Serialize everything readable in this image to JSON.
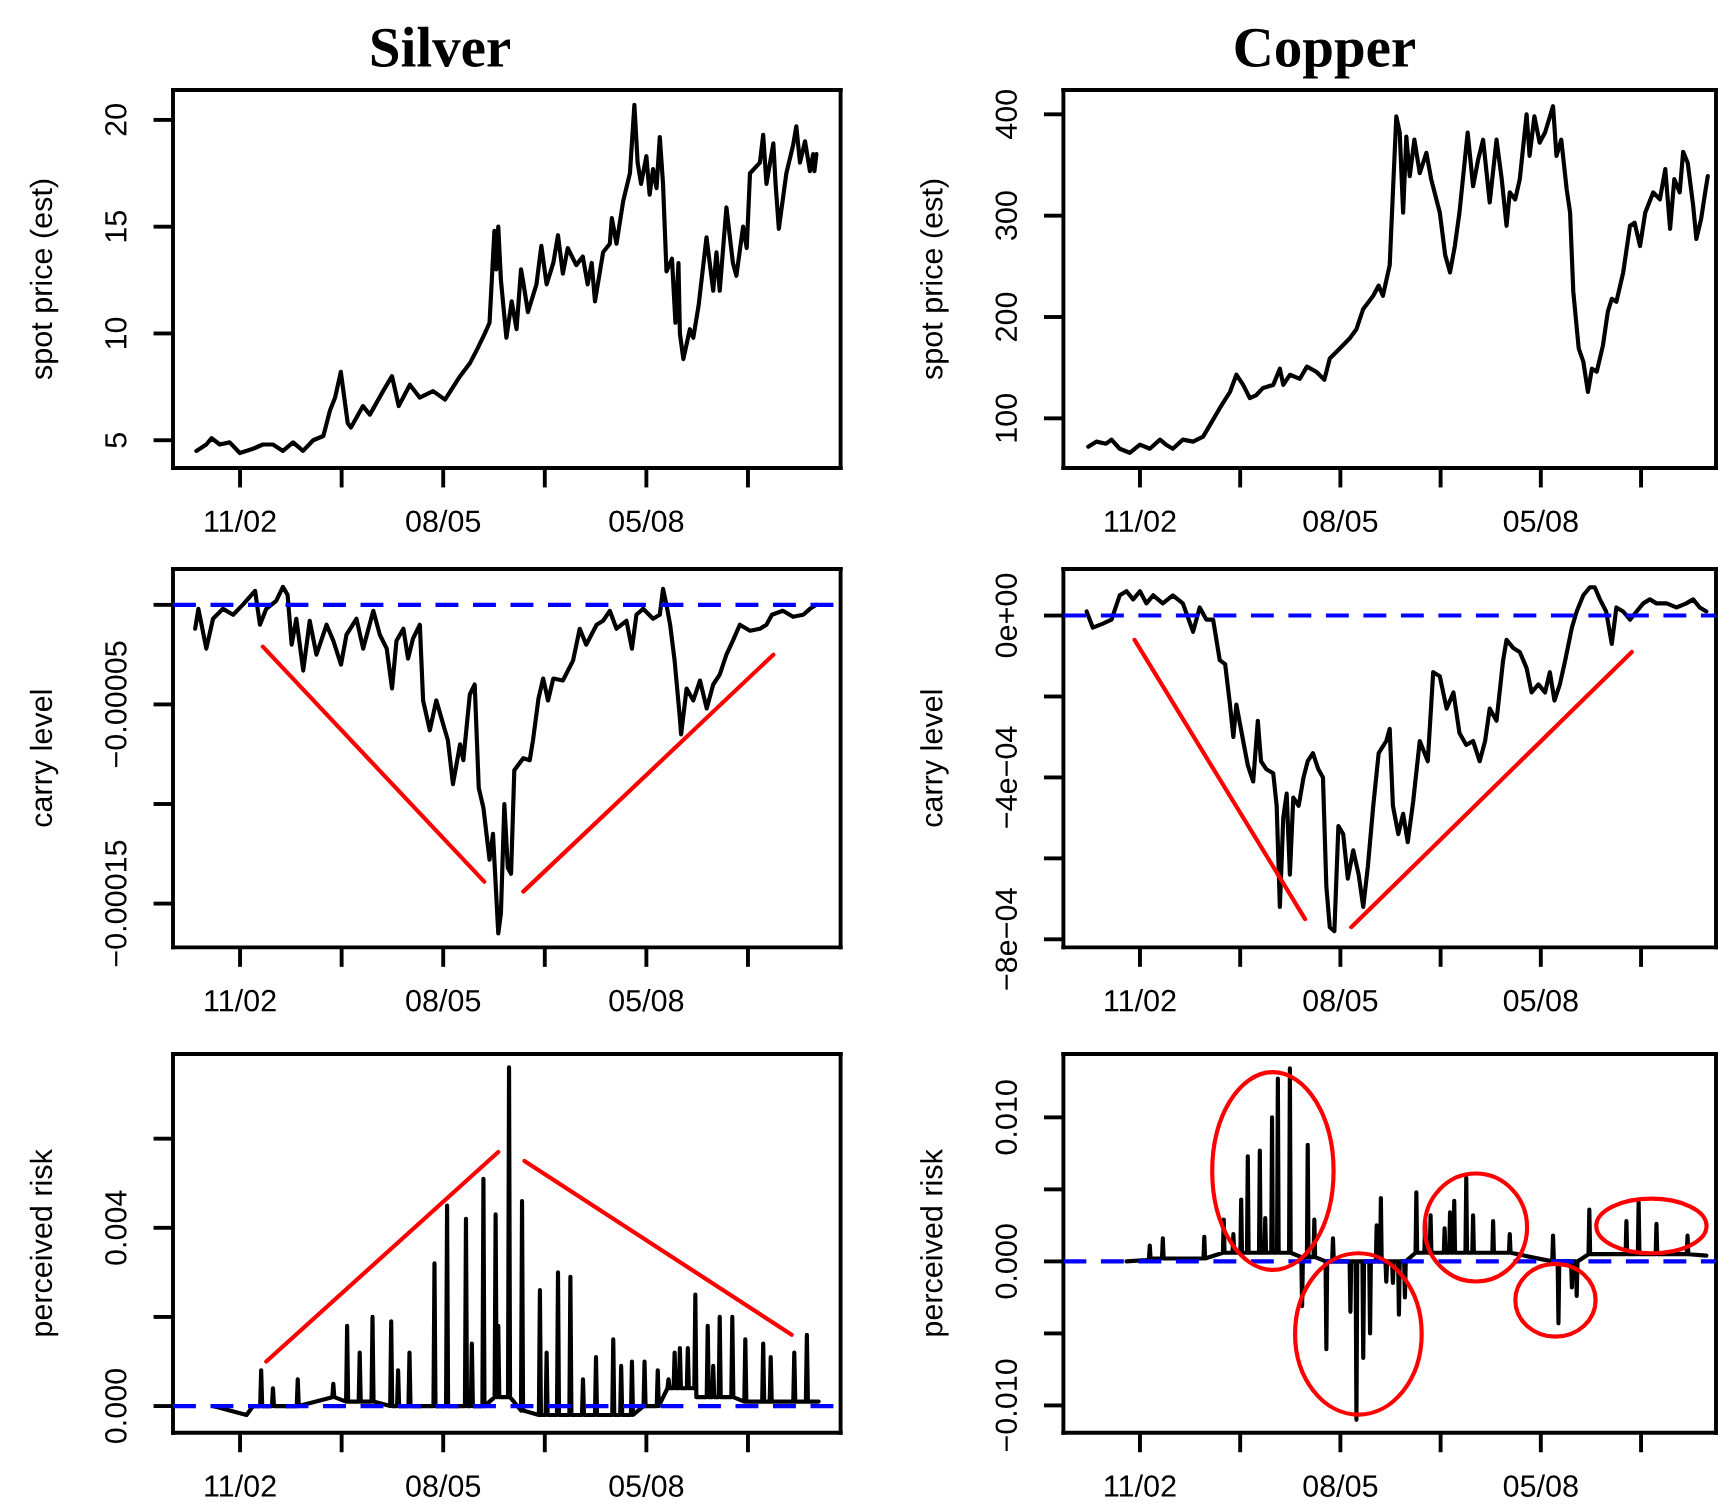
{
  "chart_data": [
    {
      "type": "line",
      "title": "Silver",
      "ylabel": "spot price (est)",
      "xlim": [
        "2001-12-20",
        "2010-12-19"
      ],
      "xticks": [
        {
          "value": "2002-11-15",
          "label": "11/02"
        },
        {
          "value": "2004-03-29",
          "label": null
        },
        {
          "value": "2005-08-11",
          "label": "08/05"
        },
        {
          "value": "2006-12-24",
          "label": null
        },
        {
          "value": "2008-05-07",
          "label": "05/08"
        },
        {
          "value": "2009-09-19",
          "label": null
        }
      ],
      "ylim": [
        3.7,
        21.4
      ],
      "yticks": [
        5,
        10,
        15,
        20
      ],
      "series": [
        {
          "color": "#000000",
          "x": [
            "2002-04-14",
            "2002-06-02",
            "2002-06-28",
            "2002-08-07",
            "2002-09-25",
            "2002-11-14",
            "2003-01-18",
            "2003-03-07",
            "2003-04-26",
            "2003-06-14",
            "2003-08-03",
            "2003-09-21",
            "2003-11-10",
            "2003-12-30",
            "2004-02-01",
            "2004-02-26",
            "2004-03-25",
            "2004-04-28",
            "2004-05-14",
            "2004-07-12",
            "2004-08-15",
            "2004-10-19",
            "2004-12-02",
            "2005-01-04",
            "2005-02-28",
            "2005-04-17",
            "2005-06-22",
            "2005-08-20",
            "2005-11-02",
            "2005-12-20",
            "2006-01-22",
            "2006-03-04",
            "2006-03-27",
            "2006-04-20",
            "2006-04-29",
            "2006-05-09",
            "2006-05-22",
            "2006-06-18",
            "2006-07-14",
            "2006-08-07",
            "2006-08-29",
            "2006-09-09",
            "2006-10-02",
            "2006-11-13",
            "2006-12-07",
            "2007-01-02",
            "2007-02-04",
            "2007-02-27",
            "2007-03-23",
            "2007-04-16",
            "2007-05-28",
            "2007-06-29",
            "2007-07-23",
            "2007-08-12",
            "2007-08-28",
            "2007-10-07",
            "2007-11-09",
            "2007-11-19",
            "2007-12-12",
            "2008-01-14",
            "2008-02-16",
            "2008-03-09",
            "2008-03-25",
            "2008-04-11",
            "2008-05-07",
            "2008-05-23",
            "2008-06-09",
            "2008-06-26",
            "2008-07-12",
            "2008-07-28",
            "2008-08-14",
            "2008-09-10",
            "2008-09-27",
            "2008-10-12",
            "2008-10-19",
            "2008-11-05",
            "2008-12-07",
            "2008-12-24",
            "2009-01-19",
            "2009-02-27",
            "2009-04-01",
            "2009-04-17",
            "2009-05-03",
            "2009-06-05",
            "2009-07-07",
            "2009-07-24",
            "2009-08-26",
            "2009-09-13",
            "2009-09-29",
            "2009-11-17",
            "2009-12-03",
            "2009-12-19",
            "2010-01-22",
            "2010-02-02",
            "2010-02-18",
            "2010-03-27",
            "2010-04-29",
            "2010-05-15",
            "2010-06-02",
            "2010-06-27",
            "2010-07-21",
            "2010-08-06",
            "2010-08-12",
            "2010-08-22"
          ],
          "values": [
            4.5,
            4.8,
            5.1,
            4.8,
            4.9,
            4.4,
            4.6,
            4.8,
            4.8,
            4.5,
            4.9,
            4.5,
            5.0,
            5.2,
            6.4,
            7.0,
            8.2,
            5.8,
            5.6,
            6.6,
            6.2,
            7.3,
            8.0,
            6.6,
            7.6,
            7.0,
            7.3,
            6.9,
            8.0,
            8.6,
            9.2,
            10.0,
            10.5,
            14.8,
            13.0,
            15.0,
            12.5,
            9.8,
            11.5,
            10.2,
            13.0,
            12.4,
            11.0,
            12.3,
            14.1,
            12.3,
            13.3,
            14.6,
            12.8,
            14.0,
            13.2,
            13.6,
            12.3,
            13.3,
            11.5,
            13.8,
            14.2,
            15.4,
            14.2,
            16.2,
            17.5,
            20.7,
            18.0,
            17.0,
            18.3,
            16.5,
            17.7,
            16.8,
            19.2,
            17.0,
            12.9,
            13.5,
            10.5,
            13.3,
            10.0,
            8.8,
            10.2,
            9.8,
            11.3,
            14.5,
            12.0,
            13.8,
            12.0,
            15.9,
            13.3,
            12.7,
            15.0,
            14.0,
            17.5,
            18.0,
            19.3,
            17.0,
            18.9,
            17.0,
            14.9,
            17.5,
            18.8,
            19.7,
            18.0,
            19.0,
            17.6,
            18.4,
            17.6,
            18.4
          ]
        }
      ]
    },
    {
      "type": "line",
      "title": "Copper",
      "ylabel": "spot price (est)",
      "xlim": [
        "2001-10-29",
        "2010-09-28"
      ],
      "xticks": [
        {
          "value": "2002-11-15",
          "label": "11/02"
        },
        {
          "value": "2004-03-29",
          "label": null
        },
        {
          "value": "2005-08-11",
          "label": "08/05"
        },
        {
          "value": "2006-12-24",
          "label": null
        },
        {
          "value": "2008-05-07",
          "label": "05/08"
        },
        {
          "value": "2009-09-19",
          "label": null
        }
      ],
      "ylim": [
        51,
        424
      ],
      "yticks": [
        100,
        200,
        300,
        400
      ],
      "series": [
        {
          "color": "#000000",
          "x": [
            "2002-03-02",
            "2002-04-11",
            "2002-05-30",
            "2002-06-26",
            "2002-08-06",
            "2002-09-25",
            "2002-11-15",
            "2003-01-03",
            "2003-02-23",
            "2003-03-25",
            "2003-04-28",
            "2003-06-17",
            "2003-08-07",
            "2003-09-26",
            "2003-10-29",
            "2003-12-18",
            "2004-02-07",
            "2004-03-10",
            "2004-04-13",
            "2004-05-16",
            "2004-06-18",
            "2004-07-21",
            "2004-09-10",
            "2004-10-13",
            "2004-10-30",
            "2004-12-02",
            "2005-01-21",
            "2005-02-25",
            "2005-04-13",
            "2005-05-23",
            "2005-06-19",
            "2005-08-08",
            "2005-09-27",
            "2005-10-30",
            "2005-12-03",
            "2006-01-22",
            "2006-02-18",
            "2006-03-11",
            "2006-04-14",
            "2006-04-30",
            "2006-05-17",
            "2006-06-03",
            "2006-06-20",
            "2006-07-06",
            "2006-07-23",
            "2006-08-15",
            "2006-09-11",
            "2006-10-14",
            "2006-11-07",
            "2006-12-20",
            "2007-01-16",
            "2007-02-09",
            "2007-03-05",
            "2007-03-28",
            "2007-05-08",
            "2007-06-04",
            "2007-06-30",
            "2007-07-24",
            "2007-08-26",
            "2007-09-29",
            "2007-10-25",
            "2007-11-18",
            "2007-12-04",
            "2007-12-31",
            "2008-01-23",
            "2008-02-26",
            "2008-03-12",
            "2008-04-05",
            "2008-05-01",
            "2008-05-28",
            "2008-07-07",
            "2008-07-24",
            "2008-08-17",
            "2008-09-13",
            "2008-09-30",
            "2008-10-16",
            "2008-11-12",
            "2008-12-05",
            "2008-12-28",
            "2009-01-17",
            "2009-02-10",
            "2009-03-13",
            "2009-04-06",
            "2009-04-26",
            "2009-05-19",
            "2009-06-22",
            "2009-07-26",
            "2009-08-18",
            "2009-09-14",
            "2009-10-10",
            "2009-11-19",
            "2009-12-22",
            "2010-01-18",
            "2010-02-11",
            "2010-03-04",
            "2010-03-31",
            "2010-04-17",
            "2010-05-10",
            "2010-06-06",
            "2010-06-22",
            "2010-07-16",
            "2010-08-05",
            "2010-08-18"
          ],
          "values": [
            72,
            77,
            75,
            79,
            70,
            66,
            74,
            70,
            79,
            74,
            70,
            79,
            77,
            82,
            93,
            110,
            126,
            143,
            133,
            120,
            123,
            130,
            133,
            149,
            133,
            143,
            139,
            151,
            146,
            138,
            159,
            169,
            179,
            188,
            208,
            221,
            231,
            221,
            251,
            323,
            398,
            382,
            303,
            378,
            339,
            375,
            342,
            362,
            336,
            303,
            261,
            244,
            270,
            303,
            382,
            329,
            356,
            375,
            313,
            375,
            336,
            290,
            323,
            316,
            336,
            400,
            359,
            398,
            372,
            382,
            408,
            359,
            375,
            326,
            303,
            225,
            169,
            156,
            126,
            149,
            146,
            172,
            205,
            218,
            215,
            244,
            290,
            293,
            270,
            303,
            323,
            316,
            346,
            287,
            336,
            323,
            363,
            352,
            310,
            277,
            297,
            323,
            339
          ]
        }
      ]
    },
    {
      "type": "line",
      "ylabel": "carry level",
      "xlim": [
        "2001-12-20",
        "2010-12-19"
      ],
      "xticks": [
        {
          "value": "2002-11-15",
          "label": "11/02"
        },
        {
          "value": "2004-03-29",
          "label": null
        },
        {
          "value": "2005-08-11",
          "label": "08/05"
        },
        {
          "value": "2006-12-24",
          "label": null
        },
        {
          "value": "2008-05-07",
          "label": "05/08"
        },
        {
          "value": "2009-09-19",
          "label": null
        }
      ],
      "ylim": [
        -0.000172,
        1.8e-05
      ],
      "yticks": [
        {
          "value": -0.00015,
          "label": "−0.00015"
        },
        {
          "value": -0.0001,
          "label": null
        },
        {
          "value": -5e-05,
          "label": "−0.00005"
        },
        {
          "value": 0,
          "label": null
        }
      ],
      "ref_lines": [
        {
          "axis": "y",
          "value": 0,
          "color": "#0000ff",
          "line_style": "dashed"
        }
      ],
      "series": [
        {
          "color": "#000000",
          "x": [
            "2002-04-08",
            "2002-04-24",
            "2002-06-02",
            "2002-07-05",
            "2002-08-23",
            "2002-10-12",
            "2002-11-28",
            "2003-01-28",
            "2003-02-21",
            "2003-03-24",
            "2003-05-12",
            "2003-06-14",
            "2003-07-07",
            "2003-07-27",
            "2003-08-19",
            "2003-09-22",
            "2003-10-24",
            "2003-11-26",
            "2004-01-15",
            "2004-02-17",
            "2004-03-26",
            "2004-04-22",
            "2004-06-10",
            "2004-07-13",
            "2004-09-01",
            "2004-10-03",
            "2004-11-06",
            "2004-12-02",
            "2004-12-24",
            "2005-01-27",
            "2005-02-19",
            "2005-03-15",
            "2005-04-18",
            "2005-05-04",
            "2005-06-06",
            "2005-07-08",
            "2005-08-11",
            "2005-09-03",
            "2005-09-28",
            "2005-11-02",
            "2005-11-18",
            "2005-12-20",
            "2006-01-13",
            "2006-02-02",
            "2006-02-25",
            "2006-03-27",
            "2006-04-13",
            "2006-05-09",
            "2006-05-22",
            "2006-06-08",
            "2006-06-25",
            "2006-07-11",
            "2006-07-27",
            "2006-09-09",
            "2006-10-11",
            "2006-10-27",
            "2006-11-23",
            "2006-12-16",
            "2007-01-09",
            "2007-02-04",
            "2007-03-23",
            "2007-05-12",
            "2007-06-14",
            "2007-07-16",
            "2007-09-05",
            "2007-10-07",
            "2007-11-09",
            "2007-12-12",
            "2008-01-30",
            "2008-02-26",
            "2008-03-19",
            "2008-04-21",
            "2008-06-09",
            "2008-07-12",
            "2008-07-28",
            "2008-08-14",
            "2008-09-01",
            "2008-09-23",
            "2008-10-19",
            "2008-10-25",
            "2008-11-21",
            "2008-12-24",
            "2009-01-26",
            "2009-02-28",
            "2009-04-01",
            "2009-05-03",
            "2009-06-05",
            "2009-07-07",
            "2009-08-10",
            "2009-09-29",
            "2009-11-17",
            "2009-12-19",
            "2010-01-15",
            "2010-03-10",
            "2010-04-29",
            "2010-06-18",
            "2010-07-21",
            "2010-08-22"
          ],
          "values": [
            -1.2e-05,
            -2e-06,
            -2.2e-05,
            -7e-06,
            -2e-06,
            -5e-06,
            0.0,
            7e-06,
            -1e-05,
            -2e-06,
            2e-06,
            9e-06,
            5e-06,
            -2e-05,
            -7e-06,
            -3.3e-05,
            -8e-06,
            -2.5e-05,
            -1e-05,
            -1.8e-05,
            -3e-05,
            -1.5e-05,
            -7e-06,
            -2.2e-05,
            -3e-06,
            -1.5e-05,
            -2.2e-05,
            -4.2e-05,
            -1.8e-05,
            -1.2e-05,
            -2.7e-05,
            -1.7e-05,
            -1e-05,
            -4.8e-05,
            -6.3e-05,
            -4.8e-05,
            -6e-05,
            -6.8e-05,
            -9e-05,
            -7e-05,
            -7.8e-05,
            -4.5e-05,
            -4e-05,
            -9.2e-05,
            -0.000102,
            -0.000128,
            -0.000115,
            -0.000165,
            -0.000155,
            -0.0001,
            -0.000132,
            -0.000135,
            -8.3e-05,
            -7.7e-05,
            -7.8e-05,
            -6.8e-05,
            -4.7e-05,
            -3.7e-05,
            -4.8e-05,
            -3.7e-05,
            -3.8e-05,
            -2.8e-05,
            -1.2e-05,
            -2e-05,
            -1e-05,
            -8e-06,
            -3e-06,
            -1.2e-05,
            -8e-06,
            -2.2e-05,
            -5e-06,
            -2e-06,
            -7e-06,
            -5e-06,
            8e-06,
            0.0,
            -1e-05,
            -2.8e-05,
            -5.7e-05,
            -6.5e-05,
            -4.2e-05,
            -4.8e-05,
            -3.8e-05,
            -5.2e-05,
            -4e-05,
            -3.5e-05,
            -2.5e-05,
            -1.8e-05,
            -1e-05,
            -1.3e-05,
            -1.2e-05,
            -1e-05,
            -5e-06,
            -3e-06,
            -6e-06,
            -5e-06,
            -2e-06,
            0.0
          ]
        },
        {
          "color": "#ff0000",
          "x": [
            "2003-03-07",
            "2006-03-01"
          ],
          "values": [
            -2.1e-05,
            -0.000139
          ]
        },
        {
          "color": "#ff0000",
          "x": [
            "2006-09-09",
            "2010-01-22"
          ],
          "values": [
            -0.000144,
            -2.5e-05
          ]
        }
      ]
    },
    {
      "type": "line",
      "ylabel": "carry level",
      "xlim": [
        "2001-10-29",
        "2010-09-28"
      ],
      "xticks": [
        {
          "value": "2002-11-15",
          "label": "11/02"
        },
        {
          "value": "2004-03-29",
          "label": null
        },
        {
          "value": "2005-08-11",
          "label": "08/05"
        },
        {
          "value": "2006-12-24",
          "label": null
        },
        {
          "value": "2008-05-07",
          "label": "05/08"
        },
        {
          "value": "2009-09-19",
          "label": null
        }
      ],
      "ylim": [
        -0.00082,
        0.000115
      ],
      "yticks": [
        {
          "value": -0.0008,
          "label": "−8e−04"
        },
        {
          "value": -0.0006,
          "label": null
        },
        {
          "value": -0.0004,
          "label": "−4e−04"
        },
        {
          "value": -0.0002,
          "label": null
        },
        {
          "value": 0,
          "label": "0e+00"
        }
      ],
      "ref_lines": [
        {
          "axis": "y",
          "value": 0,
          "color": "#0000ff",
          "line_style": "dashed"
        }
      ],
      "series": [
        {
          "color": "#000000",
          "x": [
            "2002-02-22",
            "2002-03-25",
            "2002-05-14",
            "2002-06-26",
            "2002-08-06",
            "2002-09-09",
            "2002-10-12",
            "2002-11-15",
            "2002-12-17",
            "2003-01-20",
            "2003-03-09",
            "2003-04-28",
            "2003-06-17",
            "2003-08-07",
            "2003-09-09",
            "2003-10-12",
            "2003-11-15",
            "2003-12-18",
            "2004-01-14",
            "2004-02-07",
            "2004-02-24",
            "2004-03-10",
            "2004-04-13",
            "2004-05-06",
            "2004-06-02",
            "2004-06-25",
            "2004-07-11",
            "2004-08-07",
            "2004-09-10",
            "2004-09-27",
            "2004-10-13",
            "2004-10-30",
            "2004-11-16",
            "2004-12-02",
            "2004-12-19",
            "2005-01-15",
            "2005-02-08",
            "2005-03-01",
            "2005-03-27",
            "2005-04-23",
            "2005-05-16",
            "2005-06-02",
            "2005-06-19",
            "2005-07-12",
            "2005-08-01",
            "2005-08-25",
            "2005-09-17",
            "2005-10-14",
            "2005-11-10",
            "2005-12-03",
            "2005-12-26",
            "2006-01-22",
            "2006-02-18",
            "2006-03-28",
            "2006-04-14",
            "2006-04-30",
            "2006-05-27",
            "2006-06-20",
            "2006-07-13",
            "2006-08-09",
            "2006-09-11",
            "2006-10-21",
            "2006-11-17",
            "2006-12-20",
            "2007-01-23",
            "2007-02-26",
            "2007-03-28",
            "2007-05-01",
            "2007-06-04",
            "2007-07-07",
            "2007-08-03",
            "2007-08-26",
            "2007-09-29",
            "2007-11-01",
            "2007-11-18",
            "2007-12-21",
            "2008-01-23",
            "2008-02-26",
            "2008-03-22",
            "2008-04-25",
            "2008-05-28",
            "2008-06-21",
            "2008-07-14",
            "2008-08-10",
            "2008-09-06",
            "2008-10-09",
            "2008-11-02",
            "2008-12-05",
            "2009-01-07",
            "2009-01-31",
            "2009-02-26",
            "2009-03-29",
            "2009-04-26",
            "2009-05-19",
            "2009-06-22",
            "2009-07-26",
            "2009-08-28",
            "2009-09-30",
            "2009-11-02",
            "2009-12-05",
            "2010-01-25",
            "2010-03-14",
            "2010-05-03",
            "2010-06-06",
            "2010-07-09",
            "2010-08-11"
          ],
          "values": [
            1e-05,
            -3e-05,
            -2e-05,
            -1e-05,
            5e-05,
            6e-05,
            4e-05,
            6e-05,
            3e-05,
            5e-05,
            3e-05,
            5e-05,
            3e-05,
            -4e-05,
            2e-05,
            -1e-05,
            -1e-05,
            -0.00011,
            -0.00012,
            -0.00022,
            -0.0003,
            -0.00022,
            -0.00031,
            -0.00037,
            -0.00041,
            -0.00026,
            -0.00036,
            -0.00038,
            -0.00039,
            -0.00047,
            -0.00072,
            -0.0005,
            -0.00044,
            -0.00064,
            -0.00045,
            -0.00047,
            -0.0004,
            -0.00036,
            -0.00034,
            -0.00038,
            -0.0004,
            -0.00067,
            -0.00077,
            -0.00078,
            -0.00052,
            -0.00054,
            -0.00065,
            -0.00058,
            -0.00064,
            -0.00072,
            -0.00062,
            -0.00047,
            -0.00034,
            -0.00031,
            -0.00028,
            -0.00047,
            -0.00054,
            -0.00049,
            -0.00056,
            -0.00046,
            -0.00031,
            -0.00036,
            -0.00014,
            -0.00015,
            -0.00023,
            -0.00019,
            -0.00029,
            -0.00032,
            -0.00031,
            -0.00036,
            -0.00031,
            -0.00023,
            -0.00026,
            -0.00011,
            -6e-05,
            -8e-05,
            -9e-05,
            -0.00013,
            -0.00019,
            -0.00017,
            -0.00019,
            -0.00014,
            -0.00021,
            -0.00017,
            -0.00011,
            -3e-05,
            1e-05,
            5e-05,
            7e-05,
            7e-05,
            4e-05,
            1e-05,
            -7e-05,
            2e-05,
            1e-05,
            -1e-05,
            1e-05,
            3e-05,
            4e-05,
            3e-05,
            3e-05,
            2e-05,
            3e-05,
            4e-05,
            2e-05,
            1e-05
          ]
        },
        {
          "color": "#ff0000",
          "x": [
            "2002-10-19",
            "2005-02-16"
          ],
          "values": [
            -6e-05,
            -0.00075
          ]
        },
        {
          "color": "#ff0000",
          "x": [
            "2005-10-04",
            "2009-08-04"
          ],
          "values": [
            -0.00077,
            -9e-05
          ]
        }
      ]
    },
    {
      "type": "line",
      "ylabel": "perceived risk",
      "xlim": [
        "2001-12-20",
        "2010-12-19"
      ],
      "xticks": [
        {
          "value": "2002-11-15",
          "label": "11/02"
        },
        {
          "value": "2004-03-29",
          "label": null
        },
        {
          "value": "2005-08-11",
          "label": "08/05"
        },
        {
          "value": "2006-12-24",
          "label": null
        },
        {
          "value": "2008-05-07",
          "label": "05/08"
        },
        {
          "value": "2009-09-19",
          "label": null
        }
      ],
      "ylim": [
        -0.0006,
        0.0079
      ],
      "yticks": [
        {
          "value": 0,
          "label": "0.000"
        },
        {
          "value": 0.002,
          "label": null
        },
        {
          "value": 0.004,
          "label": "0.004"
        },
        {
          "value": 0.006,
          "label": null
        }
      ],
      "ref_lines": [
        {
          "axis": "y",
          "value": 0,
          "color": "#0000ff",
          "line_style": "dashed"
        }
      ],
      "series": [
        {
          "color": "#000000",
          "x": [
            "2002-07-05",
            "2002-09-25",
            "2002-12-17",
            "2003-01-18",
            "2003-02-22",
            "2003-02-27",
            "2003-03-04",
            "2003-04-21",
            "2003-04-26",
            "2003-05-01",
            "2003-08-21",
            "2003-08-26",
            "2003-08-31",
            "2004-02-12",
            "2004-02-17",
            "2004-02-22",
            "2004-04-20",
            "2004-04-25",
            "2004-04-30",
            "2004-06-21",
            "2004-06-26",
            "2004-07-01",
            "2004-08-23",
            "2004-08-28",
            "2004-09-02",
            "2004-11-23",
            "2004-11-28",
            "2004-12-03",
            "2004-12-27",
            "2005-01-01",
            "2005-01-06",
            "2005-02-21",
            "2005-02-26",
            "2005-03-03",
            "2005-06-24",
            "2005-06-29",
            "2005-07-04",
            "2005-08-25",
            "2005-08-30",
            "2005-09-04",
            "2005-11-26",
            "2005-12-01",
            "2005-12-06",
            "2005-12-25",
            "2005-12-30",
            "2006-01-04",
            "2006-02-20",
            "2006-02-25",
            "2006-03-02",
            "2006-04-21",
            "2006-04-26",
            "2006-05-01",
            "2006-05-04",
            "2006-05-09",
            "2006-05-14",
            "2006-06-26",
            "2006-07-01",
            "2006-07-06",
            "2006-08-29",
            "2006-09-03",
            "2006-09-08",
            "2006-11-25",
            "2006-11-30",
            "2006-12-05",
            "2006-12-28",
            "2007-01-02",
            "2007-01-07",
            "2007-02-22",
            "2007-02-27",
            "2007-03-04",
            "2007-04-24",
            "2007-04-29",
            "2007-05-04",
            "2007-06-25",
            "2007-06-30",
            "2007-07-05",
            "2007-08-28",
            "2007-09-02",
            "2007-09-07",
            "2007-11-21",
            "2007-11-26",
            "2007-12-01",
            "2007-12-30",
            "2008-01-04",
            "2008-01-09",
            "2008-02-21",
            "2008-02-26",
            "2008-03-02",
            "2008-04-23",
            "2008-04-28",
            "2008-05-03",
            "2008-06-27",
            "2008-07-02",
            "2008-07-07",
            "2008-08-19",
            "2008-08-24",
            "2008-08-29",
            "2008-09-18",
            "2008-09-23",
            "2008-09-28",
            "2008-10-14",
            "2008-10-19",
            "2008-10-24",
            "2008-11-22",
            "2008-11-27",
            "2008-12-02",
            "2008-12-29",
            "2009-01-03",
            "2009-01-08",
            "2009-02-28",
            "2009-03-05",
            "2009-03-10",
            "2009-03-27",
            "2009-04-01",
            "2009-04-06",
            "2009-04-28",
            "2009-05-03",
            "2009-05-08",
            "2009-06-29",
            "2009-07-04",
            "2009-07-09",
            "2009-09-01",
            "2009-09-06",
            "2009-09-11",
            "2009-11-28",
            "2009-12-03",
            "2009-12-08",
            "2010-01-04",
            "2010-01-09",
            "2010-01-14",
            "2010-04-30",
            "2010-05-05",
            "2010-05-10",
            "2010-07-01",
            "2010-07-06",
            "2010-07-11",
            "2010-09-02"
          ],
          "values": [
            0.0,
            -0.0001,
            -0.0002,
            0.0,
            0.0,
            0.0008,
            0.0,
            0.0,
            0.0004,
            0.0,
            0.0,
            0.0006,
            0.0,
            0.0002,
            0.0005,
            0.0002,
            0.0001,
            0.0018,
            0.0001,
            0.0001,
            0.0012,
            0.0001,
            0.0001,
            0.002,
            0.0001,
            0.0,
            0.0019,
            0.0,
            0.0,
            0.0008,
            0.0,
            0.0,
            0.0012,
            0.0,
            0.0,
            0.0032,
            0.0,
            0.0,
            0.0045,
            0.0,
            0.0,
            0.0042,
            0.0,
            0.0,
            0.0014,
            0.0,
            0.0,
            0.0051,
            0.0,
            0.0002,
            0.0043,
            0.0002,
            0.0002,
            0.0018,
            0.0002,
            0.0002,
            0.0076,
            0.0002,
            -0.0001,
            0.0046,
            -0.0001,
            -0.0002,
            0.0026,
            -0.0002,
            -0.0002,
            0.0012,
            -0.0002,
            -0.0002,
            0.003,
            -0.0002,
            -0.0002,
            0.0029,
            -0.0002,
            -0.0002,
            0.0006,
            -0.0002,
            -0.0002,
            0.0011,
            -0.0002,
            -0.0002,
            0.0015,
            -0.0002,
            -0.0002,
            0.0009,
            -0.0002,
            -0.0002,
            0.001,
            -0.0002,
            0.0,
            0.001,
            0.0,
            0.0,
            0.0008,
            0.0,
            0.0004,
            0.0006,
            0.0004,
            0.0004,
            0.0012,
            0.0004,
            0.0004,
            0.0013,
            0.0004,
            0.0004,
            0.0013,
            0.0004,
            0.0004,
            0.0025,
            0.0002,
            0.0002,
            0.0018,
            0.0002,
            0.0002,
            0.0009,
            0.0002,
            0.0002,
            0.002,
            0.0002,
            0.0002,
            0.002,
            0.0002,
            0.0001,
            0.0015,
            0.0001,
            0.0001,
            0.0014,
            0.0001,
            0.0001,
            0.0011,
            0.0001,
            0.0001,
            0.0012,
            0.0001,
            0.0001,
            0.0016,
            0.0001,
            0.0001
          ]
        },
        {
          "color": "#ff0000",
          "x": [
            "2003-03-24",
            "2006-05-09"
          ],
          "values": [
            0.001,
            0.0057
          ]
        },
        {
          "color": "#ff0000",
          "x": [
            "2006-09-15",
            "2010-04-22"
          ],
          "values": [
            0.0055,
            0.0016
          ]
        }
      ]
    },
    {
      "type": "line",
      "ylabel": "perceived risk",
      "xlim": [
        "2001-10-29",
        "2010-09-28"
      ],
      "xticks": [
        {
          "value": "2002-11-15",
          "label": "11/02"
        },
        {
          "value": "2004-03-29",
          "label": null
        },
        {
          "value": "2005-08-11",
          "label": "08/05"
        },
        {
          "value": "2006-12-24",
          "label": null
        },
        {
          "value": "2008-05-07",
          "label": "05/08"
        },
        {
          "value": "2009-09-19",
          "label": null
        }
      ],
      "ylim": [
        -0.0119,
        0.0144
      ],
      "yticks": [
        {
          "value": -0.01,
          "label": "−0.010"
        },
        {
          "value": -0.005,
          "label": null
        },
        {
          "value": 0,
          "label": "0.000"
        },
        {
          "value": 0.005,
          "label": null
        },
        {
          "value": 0.01,
          "label": "0.010"
        }
      ],
      "ref_lines": [
        {
          "axis": "y",
          "value": 0,
          "color": "#0000ff",
          "line_style": "dashed"
        }
      ],
      "series": [
        {
          "color": "#000000",
          "x": [
            "2002-09-09",
            "2002-12-17",
            "2002-12-30",
            "2003-01-03",
            "2003-01-07",
            "2003-03-05",
            "2003-03-09",
            "2003-03-13",
            "2003-09-28",
            "2003-10-02",
            "2003-10-06",
            "2004-01-03",
            "2004-01-07",
            "2004-01-11",
            "2004-02-20",
            "2004-02-24",
            "2004-02-28",
            "2004-03-30",
            "2004-04-03",
            "2004-04-07",
            "2004-05-02",
            "2004-05-06",
            "2004-05-10",
            "2004-07-01",
            "2004-07-05",
            "2004-07-09",
            "2004-07-28",
            "2004-08-01",
            "2004-08-05",
            "2004-08-31",
            "2004-09-04",
            "2004-09-08",
            "2004-09-29",
            "2004-10-03",
            "2004-10-07",
            "2004-11-28",
            "2004-12-02",
            "2004-12-06",
            "2005-01-28",
            "2005-02-01",
            "2005-02-05",
            "2005-02-25",
            "2005-03-01",
            "2005-03-05",
            "2005-03-30",
            "2005-04-03",
            "2005-04-07",
            "2005-05-29",
            "2005-06-02",
            "2005-06-06",
            "2005-07-01",
            "2005-07-05",
            "2005-07-09",
            "2005-09-26",
            "2005-09-30",
            "2005-10-04",
            "2005-10-26",
            "2005-10-30",
            "2005-11-03",
            "2005-11-29",
            "2005-12-03",
            "2005-12-07",
            "2006-01-02",
            "2006-01-06",
            "2006-01-10",
            "2006-02-04",
            "2006-02-08",
            "2006-02-12",
            "2006-02-25",
            "2006-03-01",
            "2006-03-05",
            "2006-03-24",
            "2006-03-28",
            "2006-04-01",
            "2006-04-26",
            "2006-04-30",
            "2006-05-04",
            "2006-05-26",
            "2006-05-30",
            "2006-06-03",
            "2006-06-25",
            "2006-06-29",
            "2006-07-03",
            "2006-08-21",
            "2006-08-25",
            "2006-08-29",
            "2006-10-04",
            "2006-10-08",
            "2006-10-12",
            "2006-10-31",
            "2006-11-04",
            "2006-11-08",
            "2007-01-09",
            "2007-01-13",
            "2007-01-17",
            "2007-02-05",
            "2007-02-09",
            "2007-02-13",
            "2007-02-26",
            "2007-03-02",
            "2007-03-06",
            "2007-04-27",
            "2007-05-01",
            "2007-05-05",
            "2007-05-31",
            "2007-06-04",
            "2007-06-08",
            "2007-09-08",
            "2007-09-12",
            "2007-09-16",
            "2007-11-30",
            "2007-12-04",
            "2007-12-08",
            "2008-07-03",
            "2008-07-07",
            "2008-07-11",
            "2008-07-30",
            "2008-08-03",
            "2008-08-07",
            "2008-10-05",
            "2008-10-09",
            "2008-10-13",
            "2008-10-29",
            "2008-11-02",
            "2008-11-06",
            "2008-12-31",
            "2009-01-04",
            "2009-01-08",
            "2009-07-04",
            "2009-07-08",
            "2009-07-12",
            "2009-09-03",
            "2009-09-07",
            "2009-09-11",
            "2009-12-01",
            "2009-12-05",
            "2009-12-09",
            "2010-05-05",
            "2010-05-09",
            "2010-05-13",
            "2010-08-11"
          ],
          "values": [
            0.0,
            0.0001,
            0.0002,
            0.0011,
            0.0002,
            0.0002,
            0.0016,
            0.0002,
            0.0002,
            0.0017,
            0.0002,
            0.0006,
            0.0029,
            0.0006,
            0.0006,
            0.0019,
            0.0006,
            0.0006,
            0.0043,
            0.0006,
            0.0006,
            0.0073,
            0.0006,
            0.0006,
            0.0077,
            0.0006,
            0.0006,
            0.003,
            0.0006,
            0.0006,
            0.01,
            0.0006,
            0.0006,
            0.0127,
            0.0006,
            0.0006,
            0.0134,
            0.0006,
            0.0003,
            -0.0031,
            0.0003,
            0.0003,
            0.0081,
            0.0003,
            0.0003,
            0.0029,
            0.0003,
            0.0,
            -0.0061,
            0.0,
            0.0,
            0.0016,
            0.0,
            0.0,
            -0.0035,
            0.0,
            0.0,
            -0.011,
            0.0,
            0.0,
            -0.0067,
            0.0,
            0.0,
            -0.005,
            0.0,
            0.0,
            0.0025,
            0.0,
            0.0,
            0.0044,
            0.0,
            0.0,
            -0.0014,
            0.0,
            0.0,
            -0.0015,
            0.0,
            0.0,
            -0.0037,
            0.0,
            0.0,
            -0.0025,
            0.0,
            0.0006,
            0.0048,
            0.0006,
            0.0006,
            0.0028,
            0.0006,
            0.0006,
            0.0032,
            0.0006,
            0.0006,
            0.0023,
            0.0006,
            0.0006,
            0.0034,
            0.0006,
            0.0006,
            0.0042,
            0.0006,
            0.0006,
            0.0058,
            0.0006,
            0.0006,
            0.0032,
            0.0006,
            0.0006,
            0.0028,
            0.0006,
            0.0006,
            0.0019,
            0.0006,
            0.0,
            0.0018,
            0.0,
            0.0,
            -0.0043,
            0.0,
            0.0,
            -0.0018,
            0.0,
            0.0,
            -0.0024,
            0.0,
            0.0005,
            0.0036,
            0.0005,
            0.0005,
            0.0028,
            0.0005,
            0.0005,
            0.0041,
            0.0005,
            0.0005,
            0.0026,
            0.0005,
            0.0005,
            0.0018,
            0.0005,
            0.0004
          ]
        }
      ]
    }
  ]
}
